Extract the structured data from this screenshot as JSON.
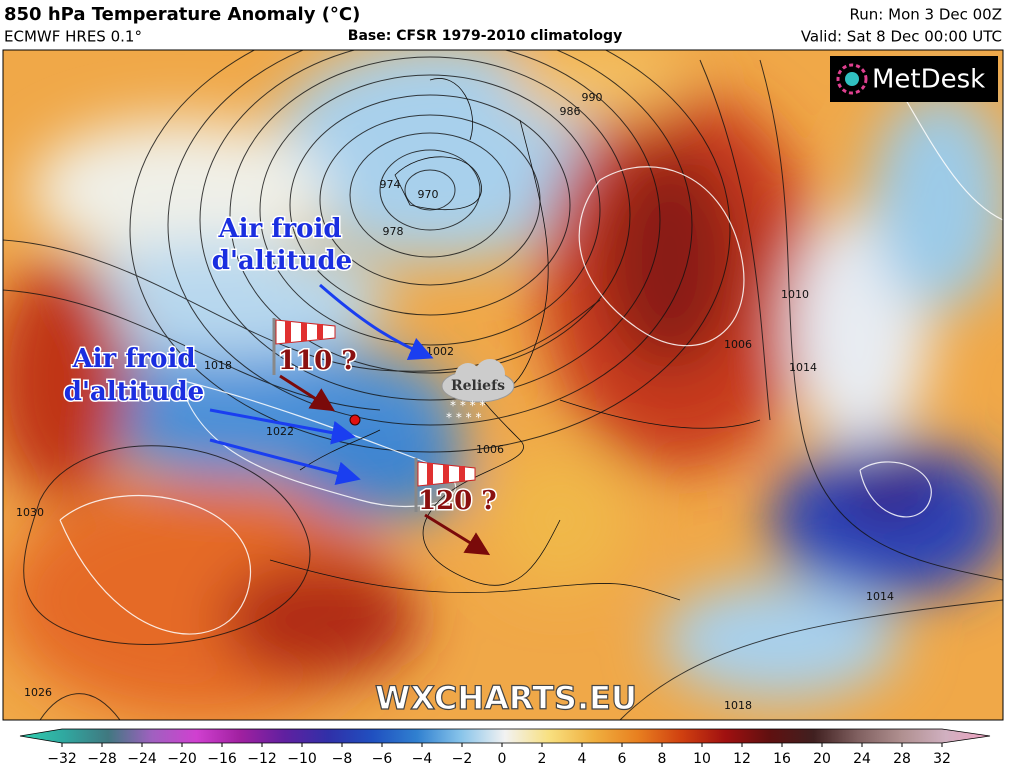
{
  "header": {
    "title": "850 hPa Temperature Anomaly (°C)",
    "model": "ECMWF HRES 0.1°",
    "base": "Base: CFSR 1979-2010 climatology",
    "run": "Run: Mon 3 Dec 00Z",
    "valid": "Valid: Sat 8 Dec 00:00 UTC"
  },
  "logo": "MetDesk",
  "watermark": "WXCHARTS.EU",
  "annotations": {
    "cold_air_north": [
      "Air froid",
      "d'altitude"
    ],
    "cold_air_west": [
      "Air froid",
      "d'altitude"
    ],
    "wind_west": "110 ?",
    "wind_south": "120 ?",
    "reliefs": "Reliefs"
  },
  "contour_labels": [
    "990",
    "986",
    "974",
    "970",
    "978",
    "1002",
    "1010",
    "1006",
    "1014",
    "1018",
    "1022",
    "1030",
    "1026",
    "1014",
    "1018",
    "1006"
  ],
  "colorbar": {
    "ticks": [
      {
        "value": -32,
        "label": "−32"
      },
      {
        "value": -28,
        "label": "−28"
      },
      {
        "value": -24,
        "label": "−24"
      },
      {
        "value": -20,
        "label": "−20"
      },
      {
        "value": -16,
        "label": "−16"
      },
      {
        "value": -12,
        "label": "−12"
      },
      {
        "value": -10,
        "label": "−10"
      },
      {
        "value": -8,
        "label": "−8"
      },
      {
        "value": -6,
        "label": "−6"
      },
      {
        "value": -4,
        "label": "−4"
      },
      {
        "value": -2,
        "label": "−2"
      },
      0,
      2,
      4,
      6,
      8,
      10,
      12,
      16,
      20,
      24,
      28,
      32
    ],
    "colors": [
      "#30d0b0",
      "#30a8a0",
      "#407880",
      "#a060c0",
      "#d040d0",
      "#a020a0",
      "#6020a0",
      "#3030a8",
      "#2050c0",
      "#3080d0",
      "#88c4ea",
      "#f2f2f2",
      "#f8e080",
      "#f0b040",
      "#e88020",
      "#d04010",
      "#a01010",
      "#601010",
      "#402020",
      "#806060",
      "#b09090",
      "#d0b0c0",
      "#f0a0c0"
    ]
  }
}
